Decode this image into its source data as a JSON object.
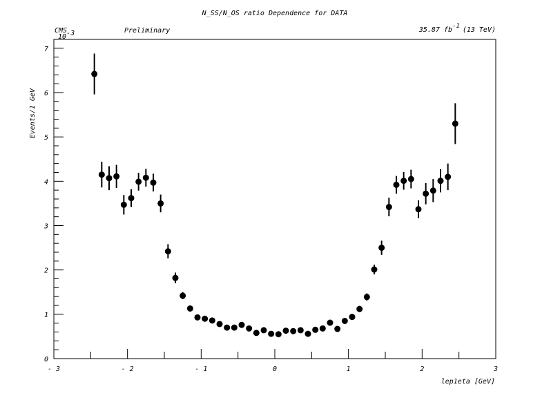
{
  "chart_data": {
    "type": "scatter",
    "title": "N_SS/N_OS ratio Dependence for DATA",
    "label_left": "CMS",
    "label_center": "Preliminary",
    "lumi_value": "35.87 fb",
    "lumi_exponent": "-1",
    "lumi_energy": "(13 TeV)",
    "exponent_label": "10",
    "exponent_power": "-3",
    "xlabel": "lep1eta [GeV]",
    "ylabel": "Events/1 GeV",
    "xlim": [
      -3,
      3
    ],
    "ylim": [
      0,
      7.2
    ],
    "x_ticks": [
      -3,
      -2,
      -1,
      0,
      1,
      2,
      3
    ],
    "x_tick_labels": [
      "- 3",
      "- 2",
      "- 1",
      "0",
      "1",
      "2",
      "3"
    ],
    "y_ticks": [
      0,
      1,
      2,
      3,
      4,
      5,
      6,
      7
    ],
    "y_tick_labels": [
      "0",
      "1",
      "2",
      "3",
      "4",
      "5",
      "6",
      "7"
    ],
    "grid": false,
    "series": [
      {
        "x": [
          -2.45,
          -2.35,
          -2.25,
          -2.15,
          -2.05,
          -1.95,
          -1.85,
          -1.75,
          -1.65,
          -1.55,
          -1.45,
          -1.35,
          -1.25,
          -1.15,
          -1.05,
          -0.95,
          -0.85,
          -0.75,
          -0.65,
          -0.55,
          -0.45,
          -0.35,
          -0.25,
          -0.15,
          -0.05,
          0.05,
          0.15,
          0.25,
          0.35,
          0.45,
          0.55,
          0.65,
          0.75,
          0.85,
          0.95,
          1.05,
          1.15,
          1.25,
          1.35,
          1.45,
          1.55,
          1.65,
          1.75,
          1.85,
          1.95,
          2.05,
          2.15,
          2.25,
          2.35,
          2.45
        ],
        "y": [
          6.42,
          4.15,
          4.07,
          4.11,
          3.47,
          3.62,
          3.99,
          4.08,
          3.97,
          3.5,
          2.42,
          1.82,
          1.42,
          1.13,
          0.93,
          0.9,
          0.86,
          0.78,
          0.7,
          0.7,
          0.76,
          0.68,
          0.58,
          0.64,
          0.56,
          0.55,
          0.63,
          0.62,
          0.64,
          0.56,
          0.65,
          0.68,
          0.81,
          0.67,
          0.85,
          0.94,
          1.12,
          1.39,
          2.01,
          2.5,
          3.42,
          3.92,
          4.01,
          4.05,
          3.37,
          3.72,
          3.79,
          4.01,
          4.1,
          5.3
        ],
        "err": [
          0.46,
          0.29,
          0.27,
          0.26,
          0.22,
          0.2,
          0.2,
          0.2,
          0.2,
          0.2,
          0.16,
          0.12,
          0.08,
          0.07,
          0.06,
          0.05,
          0.05,
          0.05,
          0.05,
          0.05,
          0.05,
          0.05,
          0.05,
          0.05,
          0.05,
          0.05,
          0.05,
          0.05,
          0.05,
          0.05,
          0.05,
          0.05,
          0.05,
          0.05,
          0.05,
          0.06,
          0.07,
          0.08,
          0.11,
          0.16,
          0.21,
          0.2,
          0.2,
          0.21,
          0.2,
          0.24,
          0.26,
          0.26,
          0.3,
          0.46
        ],
        "color": "#000000"
      }
    ]
  }
}
